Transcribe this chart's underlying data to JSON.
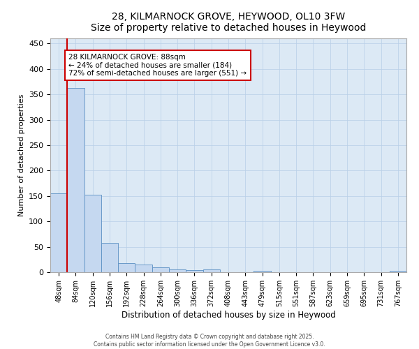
{
  "title": "28, KILMARNOCK GROVE, HEYWOOD, OL10 3FW",
  "subtitle": "Size of property relative to detached houses in Heywood",
  "xlabel": "Distribution of detached houses by size in Heywood",
  "ylabel": "Number of detached properties",
  "categories": [
    "48sqm",
    "84sqm",
    "120sqm",
    "156sqm",
    "192sqm",
    "228sqm",
    "264sqm",
    "300sqm",
    "336sqm",
    "372sqm",
    "408sqm",
    "443sqm",
    "479sqm",
    "515sqm",
    "551sqm",
    "587sqm",
    "623sqm",
    "659sqm",
    "695sqm",
    "731sqm",
    "767sqm"
  ],
  "values": [
    155,
    363,
    153,
    57,
    18,
    15,
    10,
    5,
    4,
    5,
    0,
    0,
    3,
    0,
    0,
    0,
    0,
    0,
    0,
    0,
    3
  ],
  "bar_color": "#c5d8f0",
  "bar_edge_color": "#5a8fc3",
  "subject_line_color": "#cc0000",
  "subject_bar_index": 1,
  "annotation_line1": "28 KILMARNOCK GROVE: 88sqm",
  "annotation_line2": "← 24% of detached houses are smaller (184)",
  "annotation_line3": "72% of semi-detached houses are larger (551) →",
  "ylim": [
    0,
    460
  ],
  "yticks": [
    0,
    50,
    100,
    150,
    200,
    250,
    300,
    350,
    400,
    450
  ],
  "background_color": "#ffffff",
  "plot_bg_color": "#dce9f5",
  "grid_color": "#b8cfe8",
  "footer_line1": "Contains HM Land Registry data © Crown copyright and database right 2025.",
  "footer_line2": "Contains public sector information licensed under the Open Government Licence v3.0."
}
